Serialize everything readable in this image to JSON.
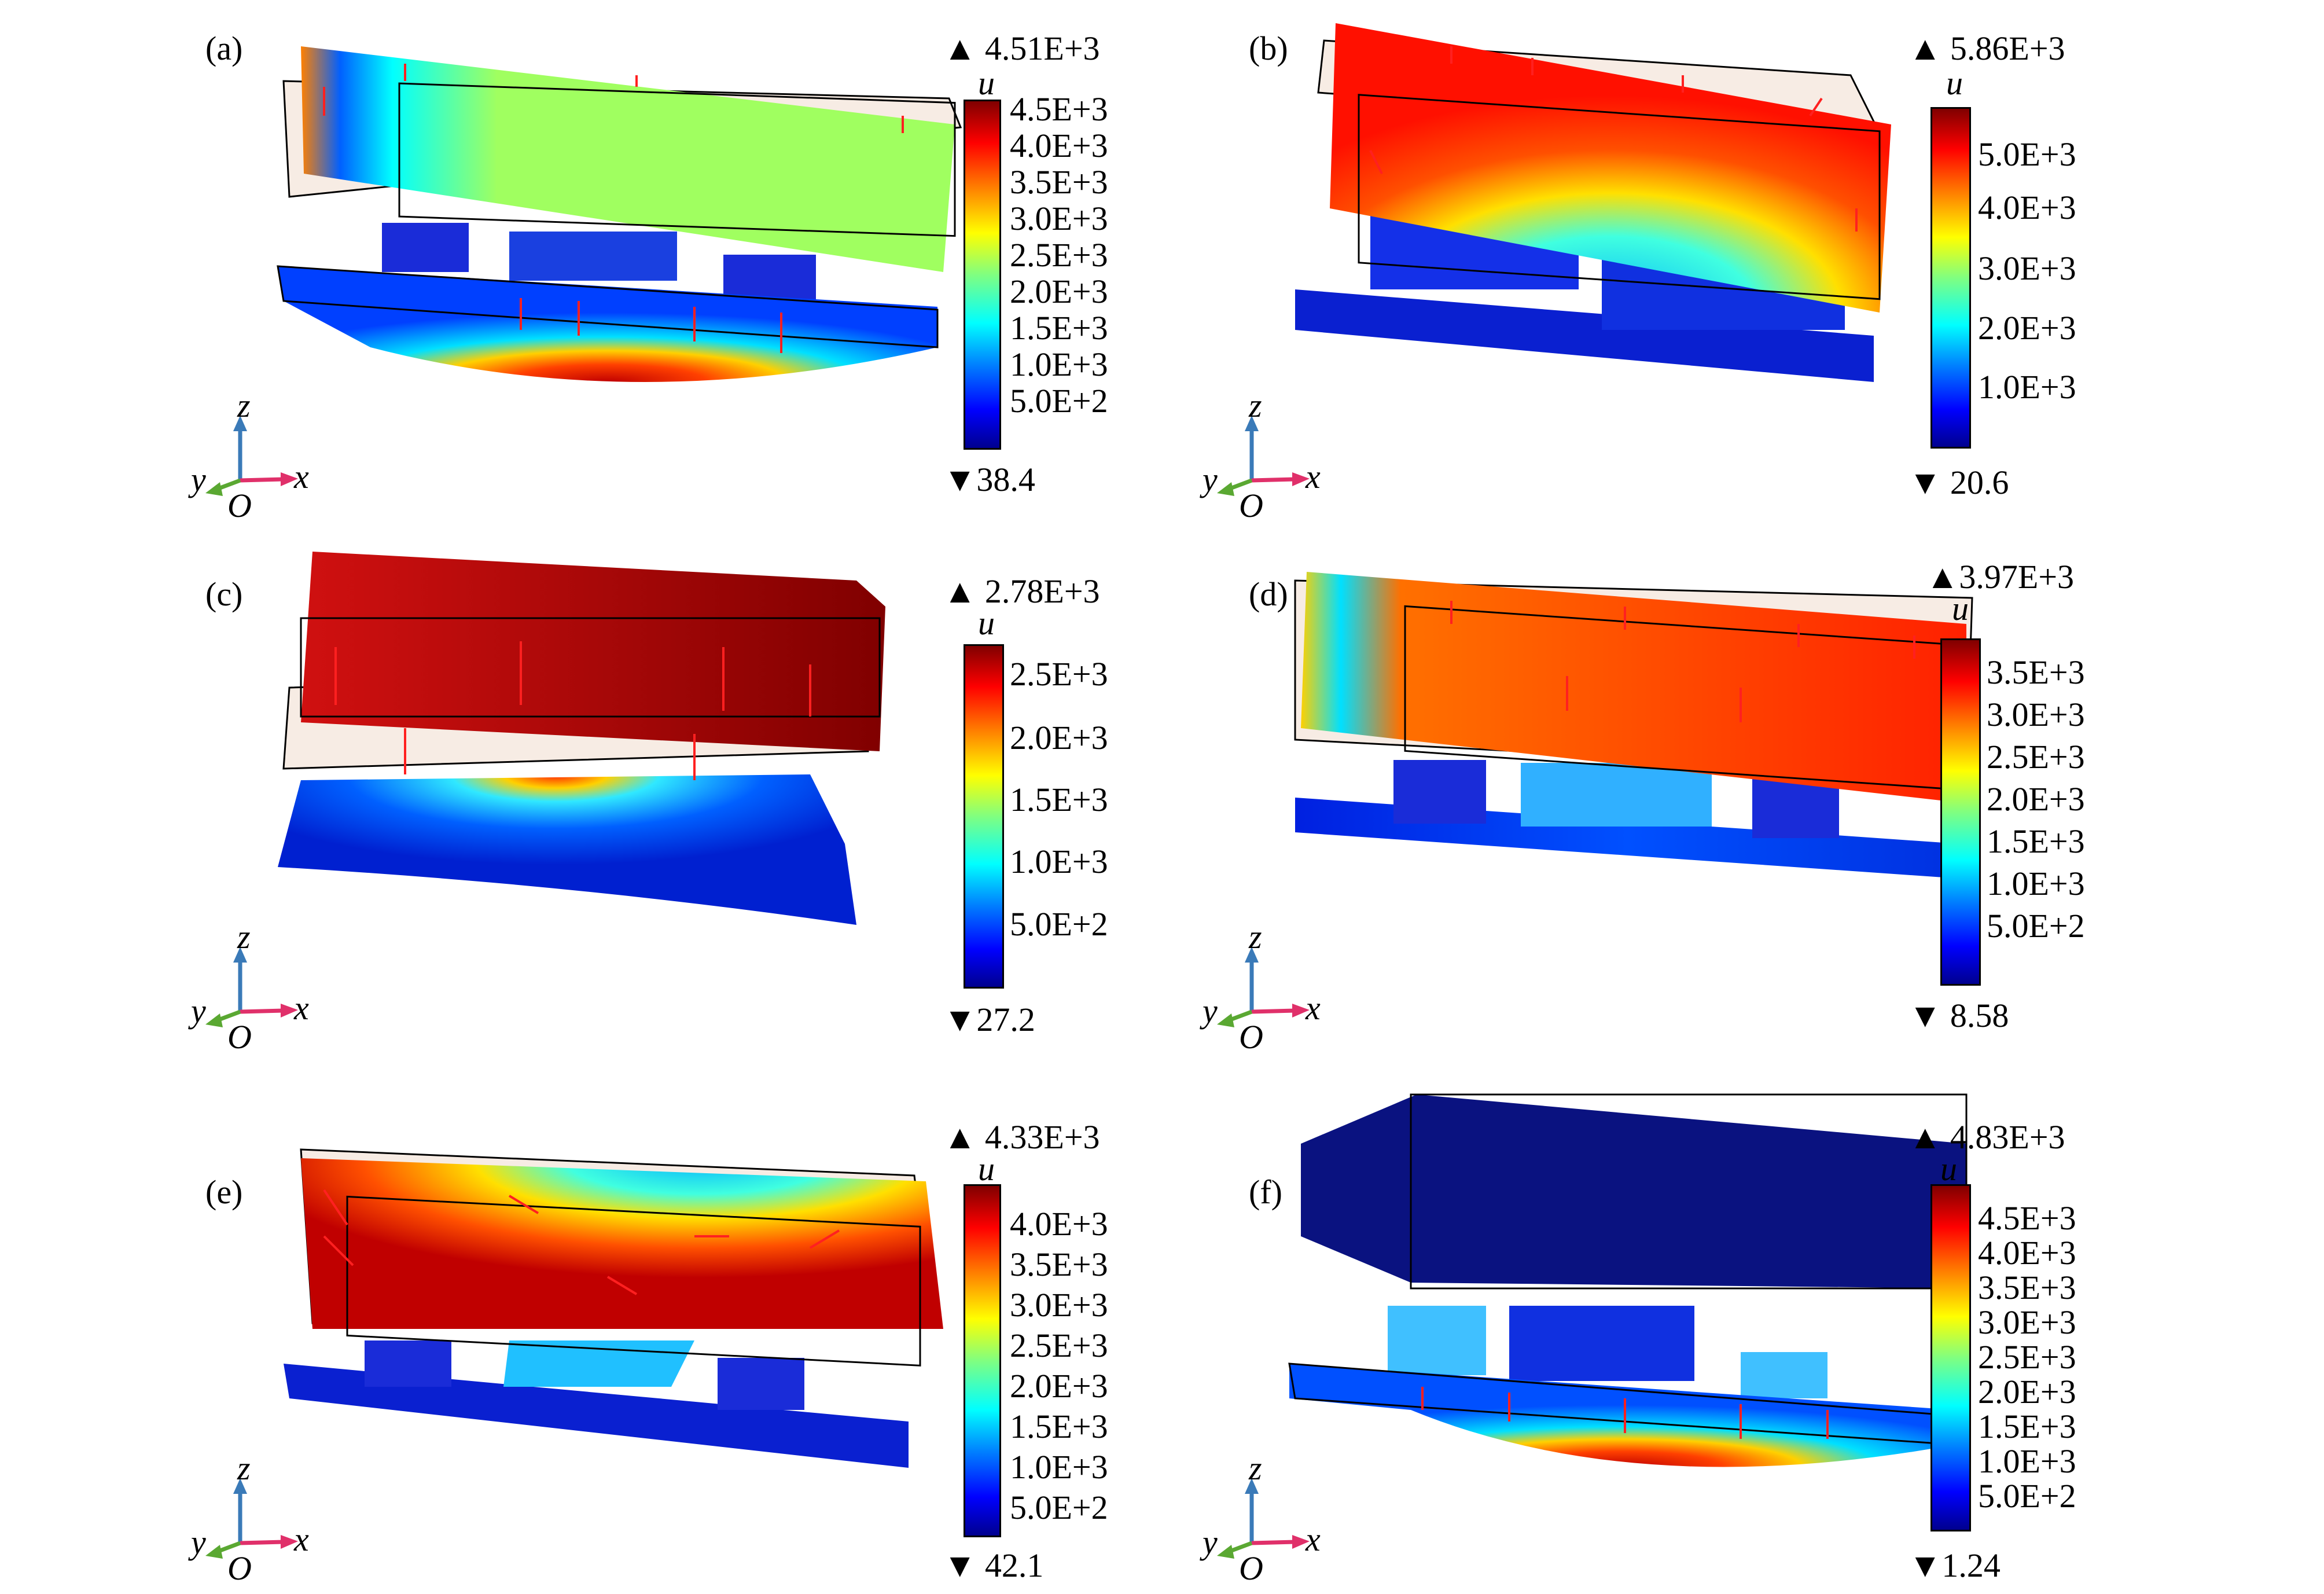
{
  "figure": {
    "panels": [
      {
        "label": "(a)",
        "colorbar": {
          "variable": "u",
          "max_label": "▲ 4.51E+3",
          "min_label": "▼38.4",
          "ticks": [
            "4.5E+3",
            "4.0E+3",
            "3.5E+3",
            "3.0E+3",
            "2.5E+3",
            "2.0E+3",
            "1.5E+3",
            "1.0E+3",
            "5.0E+2"
          ]
        },
        "axes": {
          "z": "z",
          "y": "y",
          "x": "x",
          "o": "O"
        }
      },
      {
        "label": "(b)",
        "colorbar": {
          "variable": "u",
          "max_label": "▲ 5.86E+3",
          "min_label": "▼ 20.6",
          "ticks": [
            "5.0E+3",
            "4.0E+3",
            "3.0E+3",
            "2.0E+3",
            "1.0E+3"
          ]
        },
        "axes": {
          "z": "z",
          "y": "y",
          "x": "x",
          "o": "O"
        }
      },
      {
        "label": "(c)",
        "colorbar": {
          "variable": "u",
          "max_label": "▲ 2.78E+3",
          "min_label": "▼27.2",
          "ticks": [
            "2.5E+3",
            "2.0E+3",
            "1.5E+3",
            "1.0E+3",
            "5.0E+2"
          ]
        },
        "axes": {
          "z": "z",
          "y": "y",
          "x": "x",
          "o": "O"
        }
      },
      {
        "label": "(d)",
        "colorbar": {
          "variable": "u",
          "max_label": "▲3.97E+3",
          "min_label": "▼ 8.58",
          "ticks": [
            "3.5E+3",
            "3.0E+3",
            "2.5E+3",
            "2.0E+3",
            "1.5E+3",
            "1.0E+3",
            "5.0E+2"
          ]
        },
        "axes": {
          "z": "z",
          "y": "y",
          "x": "x",
          "o": "O"
        }
      },
      {
        "label": "(e)",
        "colorbar": {
          "variable": "u",
          "max_label": "▲ 4.33E+3",
          "min_label": "▼ 42.1",
          "ticks": [
            "4.0E+3",
            "3.5E+3",
            "3.0E+3",
            "2.5E+3",
            "2.0E+3",
            "1.5E+3",
            "1.0E+3",
            "5.0E+2"
          ]
        },
        "axes": {
          "z": "z",
          "y": "y",
          "x": "x",
          "o": "O"
        }
      },
      {
        "label": "(f)",
        "colorbar": {
          "variable": "u",
          "max_label": "▲ 4.83E+3",
          "min_label": "▼1.24",
          "ticks": [
            "4.5E+3",
            "4.0E+3",
            "3.5E+3",
            "3.0E+3",
            "2.5E+3",
            "2.0E+3",
            "1.5E+3",
            "1.0E+3",
            "5.0E+2"
          ]
        },
        "axes": {
          "z": "z",
          "y": "y",
          "x": "x",
          "o": "O"
        }
      }
    ],
    "colormap": [
      "#00008f",
      "#0000ff",
      "#0080ff",
      "#00ffff",
      "#80ff80",
      "#ffff00",
      "#ff8000",
      "#ff0000",
      "#800000"
    ],
    "arrow_color": "#ff2020",
    "axis_colors": {
      "z": "#3a7ab8",
      "y": "#5aa832",
      "x": "#e0306a"
    }
  }
}
